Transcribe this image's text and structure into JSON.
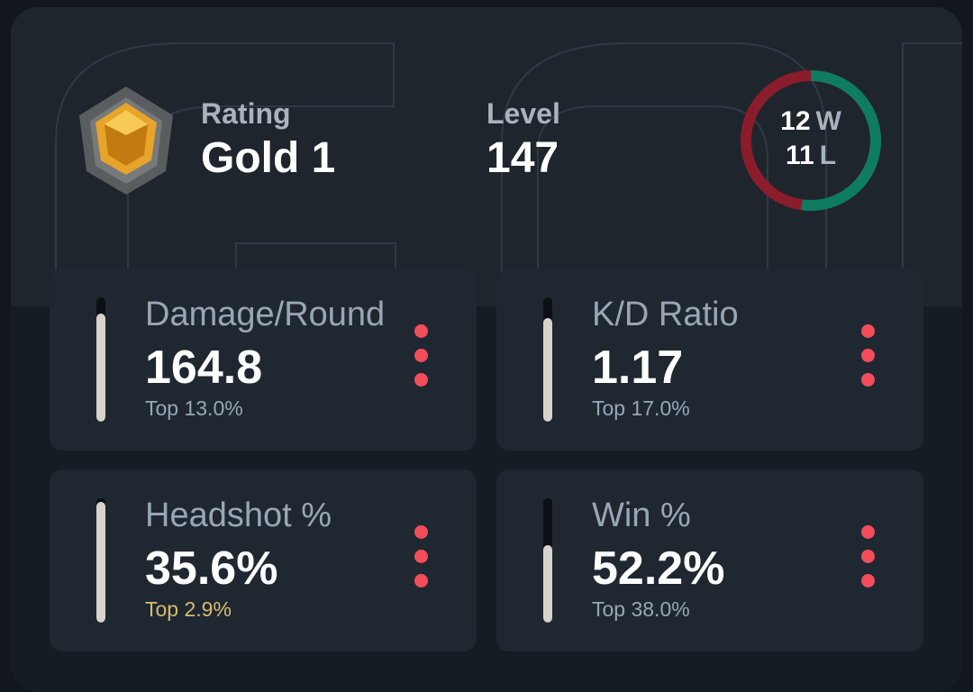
{
  "header": {
    "rating_label": "Rating",
    "rating_value": "Gold 1",
    "level_label": "Level",
    "level_value": "147",
    "record": {
      "wins": "12",
      "wins_unit": "W",
      "losses": "11",
      "losses_unit": "L",
      "win_color": "#0e7c61",
      "loss_color": "#8b1c2b"
    }
  },
  "stats": [
    {
      "label": "Damage/Round",
      "value": "164.8",
      "rank": "Top 13.0%",
      "level": 0.87,
      "highlight": false
    },
    {
      "label": "K/D Ratio",
      "value": "1.17",
      "rank": "Top 17.0%",
      "level": 0.83,
      "highlight": false
    },
    {
      "label": "Headshot %",
      "value": "35.6%",
      "rank": "Top 2.9%",
      "level": 0.97,
      "highlight": true
    },
    {
      "label": "Win %",
      "value": "52.2%",
      "rank": "Top 38.0%",
      "level": 0.62,
      "highlight": false
    }
  ],
  "colors": {
    "bar_fill": "#d7d3cc",
    "menu_dots": "#f24d5b",
    "highlight_rank": "#d6bc70"
  }
}
